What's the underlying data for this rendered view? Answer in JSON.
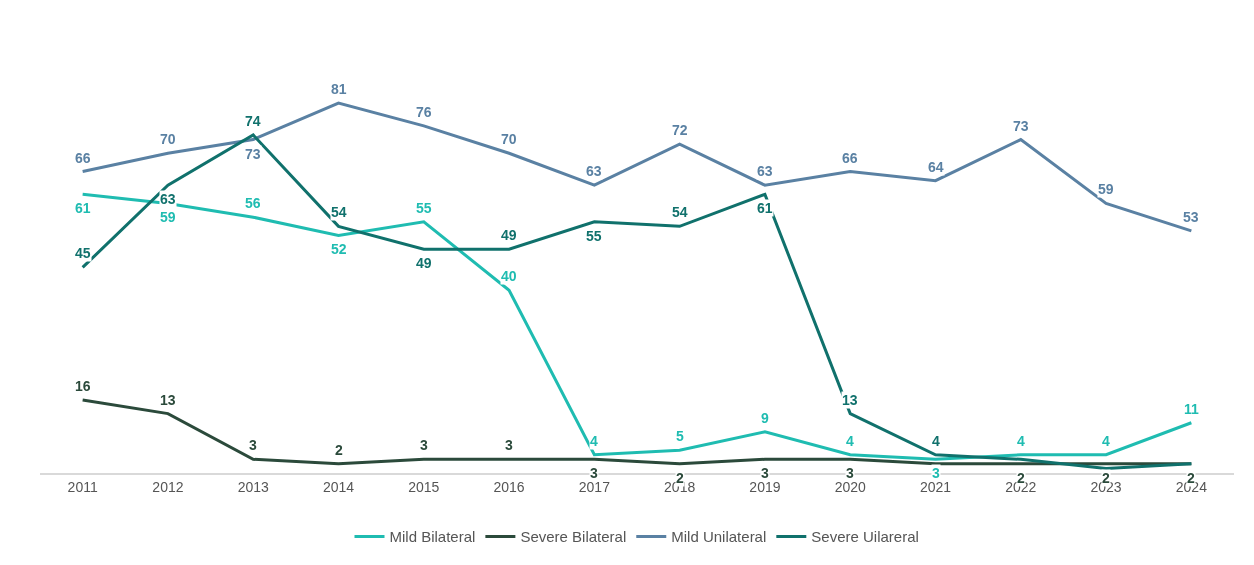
{
  "chart_data": {
    "type": "line",
    "categories": [
      "2011",
      "2012",
      "2013",
      "2014",
      "2015",
      "2016",
      "2017",
      "2018",
      "2019",
      "2020",
      "2021",
      "2022",
      "2023",
      "2024"
    ],
    "series": [
      {
        "name": "Mild Bilateral",
        "color": "#1fbcb1",
        "values": [
          61,
          59,
          56,
          52,
          55,
          40,
          4,
          5,
          9,
          4,
          3,
          4,
          4,
          11
        ],
        "value_labels": [
          "61",
          "59",
          "56",
          "52",
          "55",
          "40",
          "4",
          "5",
          "9",
          "4",
          "3",
          "4",
          "4",
          "11"
        ]
      },
      {
        "name": "Severe Bilateral",
        "color": "#2b4a3b",
        "values": [
          16,
          13,
          3,
          2,
          3,
          3,
          3,
          2,
          3,
          3,
          2,
          2,
          2,
          2
        ],
        "value_labels": [
          "16",
          "13",
          "3",
          "2",
          "3",
          "3",
          "3",
          "2",
          "3",
          "3",
          null,
          "2",
          "2",
          "2"
        ]
      },
      {
        "name": "Mild Unilateral",
        "color": "#5a81a3",
        "values": [
          66,
          70,
          73,
          81,
          76,
          70,
          63,
          72,
          63,
          66,
          64,
          73,
          59,
          53
        ],
        "value_labels": [
          "66",
          "70",
          "73",
          "81",
          "76",
          "70",
          "63",
          "72",
          "63",
          "66",
          "64",
          "73",
          "59",
          "53"
        ]
      },
      {
        "name": "Severe Uilareral",
        "color": "#10716c",
        "values": [
          45,
          63,
          74,
          54,
          49,
          49,
          55,
          54,
          61,
          13,
          4,
          3,
          1,
          2
        ],
        "value_labels": [
          "45",
          "63",
          "74",
          "54",
          "49",
          "49",
          "55",
          "54",
          "61",
          "13",
          "4",
          null,
          null,
          null
        ]
      }
    ],
    "legend": "bottom",
    "line_style": "solid"
  }
}
